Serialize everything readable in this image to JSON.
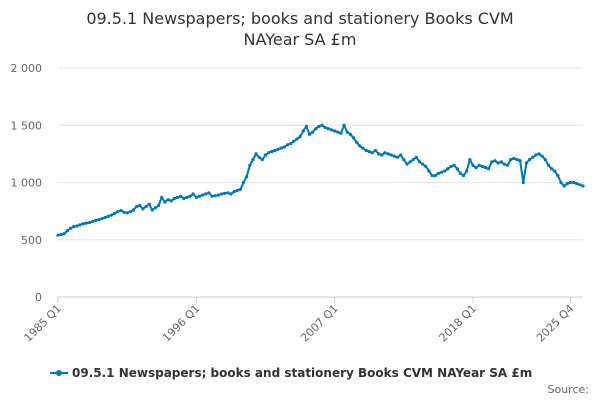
{
  "chart_data": {
    "type": "line",
    "title_lines": [
      "09.5.1 Newspapers; books and stationery Books CVM",
      "NAYear SA £m"
    ],
    "ylim": [
      0,
      2000
    ],
    "yticks": [
      0,
      500,
      1000,
      1500,
      2000
    ],
    "ytick_labels": [
      "0",
      "500",
      "1 000",
      "1 500",
      "2 000"
    ],
    "xtick_labels": [
      "1985 Q1",
      "1996 Q1",
      "2007 Q1",
      "2018 Q1",
      "2025 Q4"
    ],
    "xtick_positions": [
      0,
      44,
      88,
      132,
      163
    ],
    "grid": true,
    "legend": "bottom",
    "source_label": "Source:",
    "series": [
      {
        "name": "09.5.1 Newspapers; books and stationery Books CVM NAYear SA £m",
        "color": "#0077b6",
        "values": [
          540,
          545,
          555,
          580,
          600,
          615,
          620,
          630,
          640,
          645,
          650,
          660,
          670,
          675,
          685,
          695,
          705,
          715,
          730,
          745,
          755,
          740,
          735,
          745,
          760,
          790,
          800,
          770,
          790,
          810,
          760,
          780,
          800,
          870,
          830,
          850,
          840,
          860,
          870,
          880,
          860,
          870,
          880,
          900,
          870,
          880,
          890,
          900,
          910,
          880,
          885,
          890,
          900,
          905,
          910,
          900,
          920,
          930,
          940,
          1000,
          1050,
          1150,
          1200,
          1250,
          1220,
          1200,
          1240,
          1260,
          1270,
          1280,
          1290,
          1300,
          1310,
          1330,
          1340,
          1360,
          1380,
          1400,
          1450,
          1490,
          1420,
          1440,
          1470,
          1490,
          1500,
          1480,
          1470,
          1460,
          1450,
          1440,
          1430,
          1500,
          1440,
          1420,
          1390,
          1350,
          1320,
          1300,
          1280,
          1270,
          1260,
          1280,
          1250,
          1240,
          1260,
          1250,
          1240,
          1230,
          1220,
          1240,
          1200,
          1160,
          1180,
          1200,
          1220,
          1180,
          1160,
          1140,
          1100,
          1060,
          1060,
          1080,
          1090,
          1100,
          1120,
          1140,
          1150,
          1120,
          1080,
          1060,
          1100,
          1200,
          1150,
          1130,
          1150,
          1140,
          1130,
          1120,
          1180,
          1190,
          1170,
          1180,
          1160,
          1150,
          1200,
          1210,
          1200,
          1190,
          1000,
          1170,
          1200,
          1220,
          1240,
          1250,
          1230,
          1200,
          1150,
          1120,
          1100,
          1060,
          1000,
          970,
          990,
          1000,
          1000,
          990,
          980,
          970
        ]
      }
    ]
  }
}
